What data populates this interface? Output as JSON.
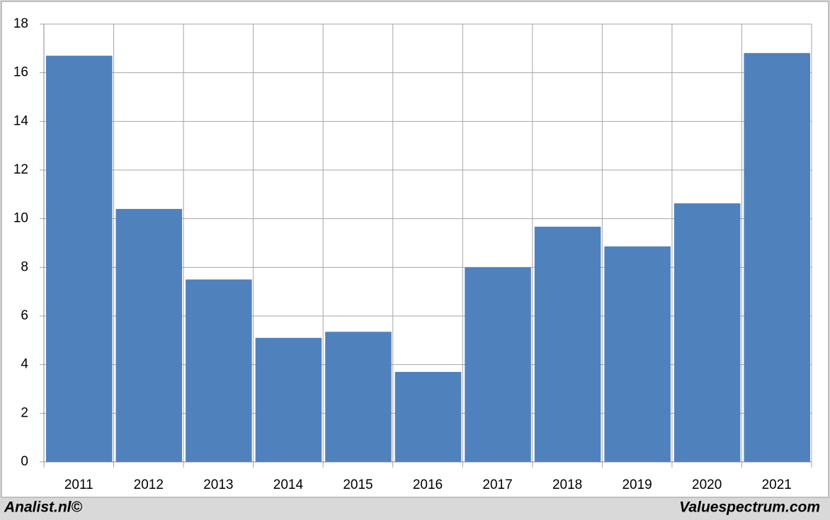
{
  "chart_data": {
    "type": "bar",
    "categories": [
      "2011",
      "2012",
      "2013",
      "2014",
      "2015",
      "2016",
      "2017",
      "2018",
      "2019",
      "2020",
      "2021"
    ],
    "values": [
      16.7,
      10.4,
      7.5,
      5.1,
      5.35,
      3.7,
      8.0,
      9.67,
      8.86,
      10.63,
      16.81
    ],
    "color": "#4f81bd",
    "ylim": [
      0,
      18
    ],
    "yticks": [
      0,
      2,
      4,
      6,
      8,
      10,
      12,
      14,
      16,
      18
    ],
    "grid": true
  },
  "footer": {
    "left": "Analist.nl©",
    "right": "Valuespectrum.com"
  }
}
